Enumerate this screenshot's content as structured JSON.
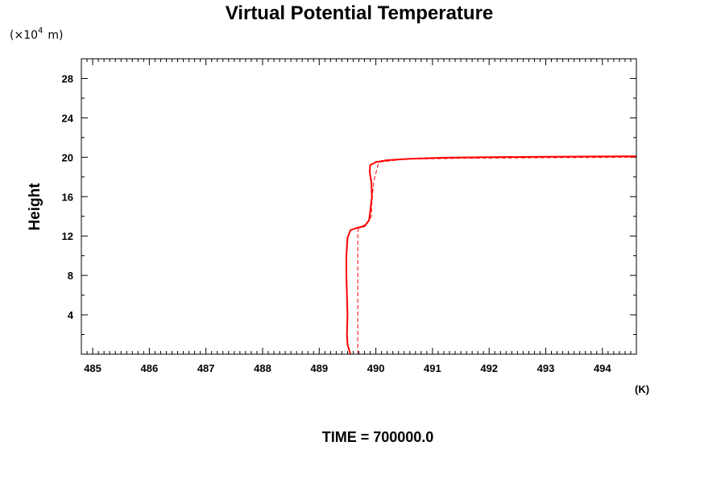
{
  "chart_data": {
    "type": "line",
    "title": "Virtual Potential Temperature",
    "xlabel": "",
    "ylabel": "Height",
    "x_unit": "(K)",
    "y_scale_prefix": "(×10",
    "y_scale_exponent": "4",
    "y_scale_unit": "m)",
    "footer": "TIME = 700000.0",
    "xlim": [
      484.8,
      494.6
    ],
    "ylim": [
      0,
      30
    ],
    "xticks": [
      485,
      486,
      487,
      488,
      489,
      490,
      491,
      492,
      493,
      494
    ],
    "yticks": [
      4,
      8,
      12,
      16,
      20,
      24,
      28
    ],
    "series": [
      {
        "style": "solid",
        "color": "#ff0000",
        "x": [
          489.55,
          489.5,
          489.49,
          489.5,
          489.49,
          489.48,
          489.48,
          489.5,
          489.55,
          489.65,
          489.8,
          489.88,
          489.9,
          489.93,
          489.92,
          489.89,
          489.9,
          490.0,
          490.2,
          490.6,
          491.2,
          492.0,
          493.0,
          494.6
        ],
        "y": [
          0,
          1,
          2,
          4,
          6,
          8,
          10,
          11.8,
          12.6,
          12.8,
          13.0,
          13.6,
          14.5,
          16.0,
          17.5,
          18.5,
          19.2,
          19.5,
          19.7,
          19.85,
          19.95,
          20.0,
          20.05,
          20.1
        ]
      },
      {
        "style": "dashed",
        "color": "#ff0000",
        "x": [
          489.68,
          489.68,
          489.68,
          489.7,
          489.85,
          489.92,
          489.93,
          489.96,
          490.05,
          490.5,
          491.5,
          493.0,
          494.6
        ],
        "y": [
          0,
          6,
          12.5,
          12.8,
          13.3,
          14.0,
          15.5,
          17.5,
          19.5,
          19.8,
          19.9,
          19.95,
          20.0
        ]
      }
    ]
  }
}
